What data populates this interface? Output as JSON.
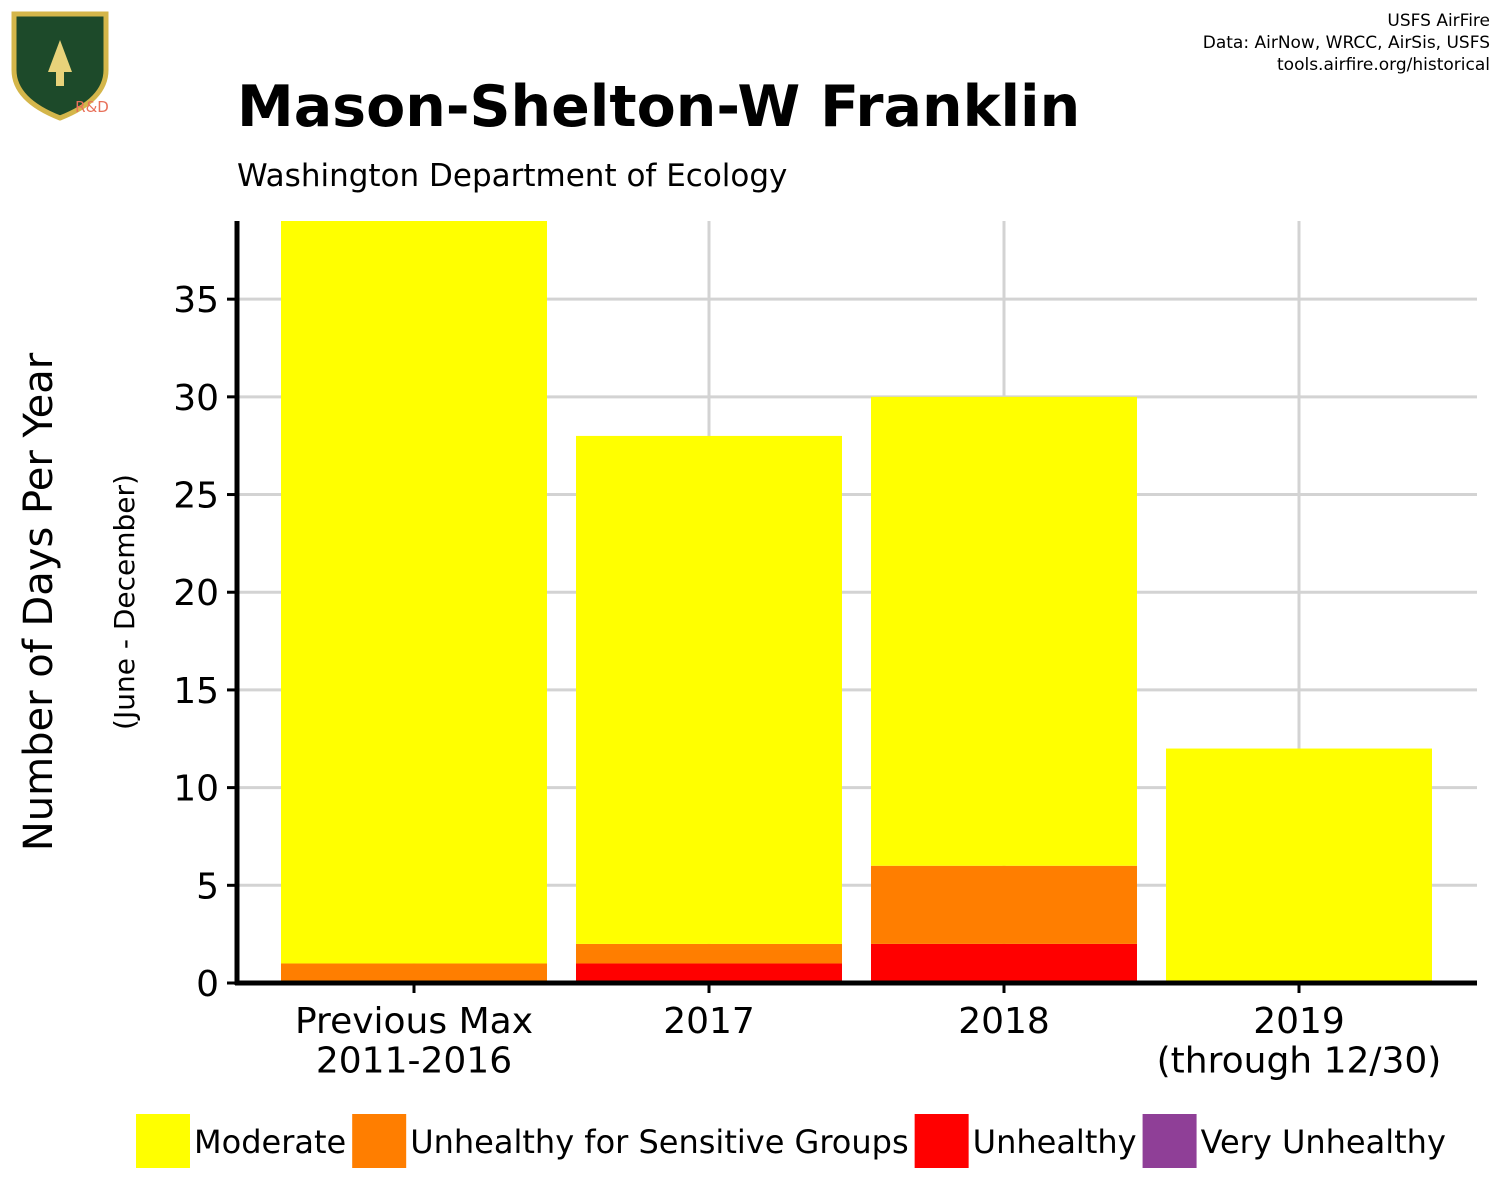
{
  "chart_data": {
    "type": "stacked_bar",
    "title": "Mason-Shelton-W Franklin",
    "subtitle": "Washington Department of Ecology",
    "credits": [
      "USFS AirFire",
      "Data: AirNow, WRCC, AirSis, USFS",
      "tools.airfire.org/historical"
    ],
    "logo_label": "R&D",
    "y_label": "Number of Days Per Year",
    "y_sublabel": "(June - December)",
    "categories": [
      "Previous Max\n2011-2016",
      "2017",
      "2018",
      "2019\n(through 12/30)"
    ],
    "series": [
      {
        "name": "Moderate",
        "color": "#ffff00",
        "values": [
          38,
          26,
          24,
          12
        ]
      },
      {
        "name": "Unhealthy for Sensitive Groups",
        "color": "#ff7e00",
        "values": [
          1,
          1,
          4,
          0
        ]
      },
      {
        "name": "Unhealthy",
        "color": "#ff0000",
        "values": [
          0,
          1,
          2,
          0
        ]
      },
      {
        "name": "Very Unhealthy",
        "color": "#8f3f97",
        "values": [
          0,
          0,
          0,
          0
        ]
      }
    ],
    "ylim": [
      0,
      39
    ],
    "yticks": [
      0,
      5,
      10,
      15,
      20,
      25,
      30,
      35
    ],
    "grid": true
  }
}
